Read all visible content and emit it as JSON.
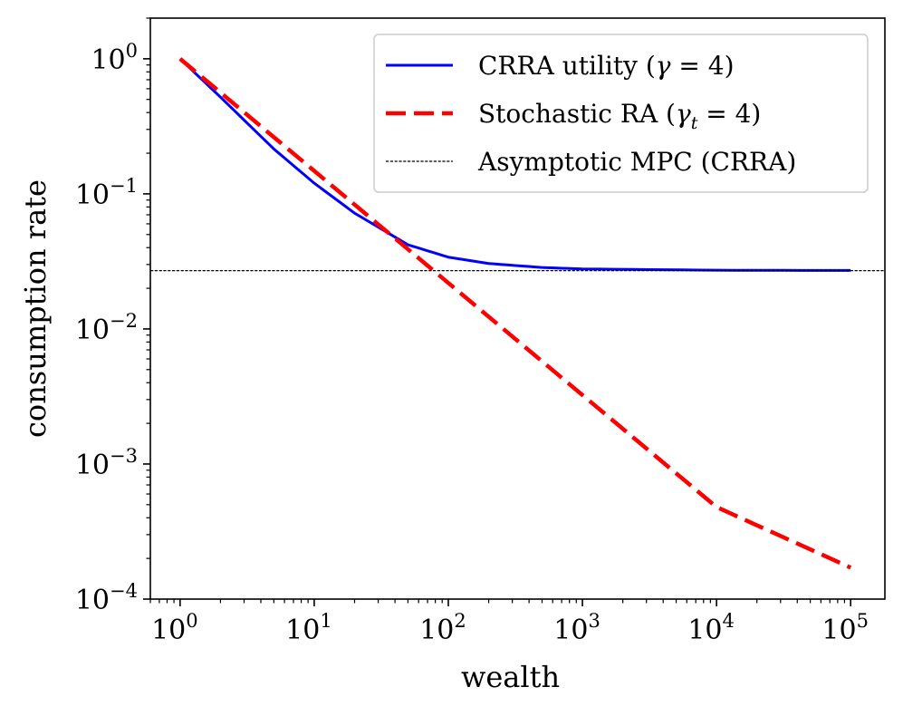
{
  "chart_data": {
    "type": "line",
    "xscale": "log",
    "yscale": "log",
    "xlabel": "wealth",
    "ylabel": "consumption rate",
    "xlim": [
      0.6,
      180000
    ],
    "ylim": [
      0.0001,
      2
    ],
    "x_ticks": [
      {
        "value": 1,
        "base": "10",
        "exp": "0"
      },
      {
        "value": 10,
        "base": "10",
        "exp": "1"
      },
      {
        "value": 100,
        "base": "10",
        "exp": "2"
      },
      {
        "value": 1000,
        "base": "10",
        "exp": "3"
      },
      {
        "value": 10000,
        "base": "10",
        "exp": "4"
      },
      {
        "value": 100000,
        "base": "10",
        "exp": "5"
      }
    ],
    "y_ticks": [
      {
        "value": 1,
        "base": "10",
        "exp": "0"
      },
      {
        "value": 0.1,
        "base": "10",
        "exp": "−1"
      },
      {
        "value": 0.01,
        "base": "10",
        "exp": "−2"
      },
      {
        "value": 0.001,
        "base": "10",
        "exp": "−3"
      },
      {
        "value": 0.0001,
        "base": "10",
        "exp": "−4"
      }
    ],
    "series": [
      {
        "name": "CRRA utility (γ = 4)",
        "legend_main": "CRRA utility (",
        "legend_sym": "γ",
        "legend_sub": "",
        "legend_tail": " = 4)",
        "color": "#0000ff",
        "style": "solid",
        "x": [
          1,
          2,
          5,
          10,
          20,
          50,
          100,
          200,
          500,
          1000,
          10000,
          100000
        ],
        "y": [
          1.0,
          0.52,
          0.215,
          0.12,
          0.072,
          0.042,
          0.034,
          0.0305,
          0.0285,
          0.0278,
          0.0272,
          0.0271
        ]
      },
      {
        "name": "Stochastic RA (γt = 4)",
        "legend_main": "Stochastic RA (",
        "legend_sym": "γ",
        "legend_sub": "t",
        "legend_tail": " = 4)",
        "color": "#ff0000",
        "style": "dashed",
        "x": [
          1,
          10,
          100,
          1000,
          10000,
          100000
        ],
        "y": [
          1.0,
          0.148,
          0.0219,
          0.00324,
          0.00048,
          0.000171
        ]
      },
      {
        "name": "Asymptotic MPC (CRRA)",
        "legend_main": "Asymptotic MPC (CRRA)",
        "legend_sym": "",
        "legend_sub": "",
        "legend_tail": "",
        "color": "#000000",
        "style": "hline",
        "y_value": 0.027
      }
    ],
    "legend_position": "top-right",
    "grid": false
  }
}
